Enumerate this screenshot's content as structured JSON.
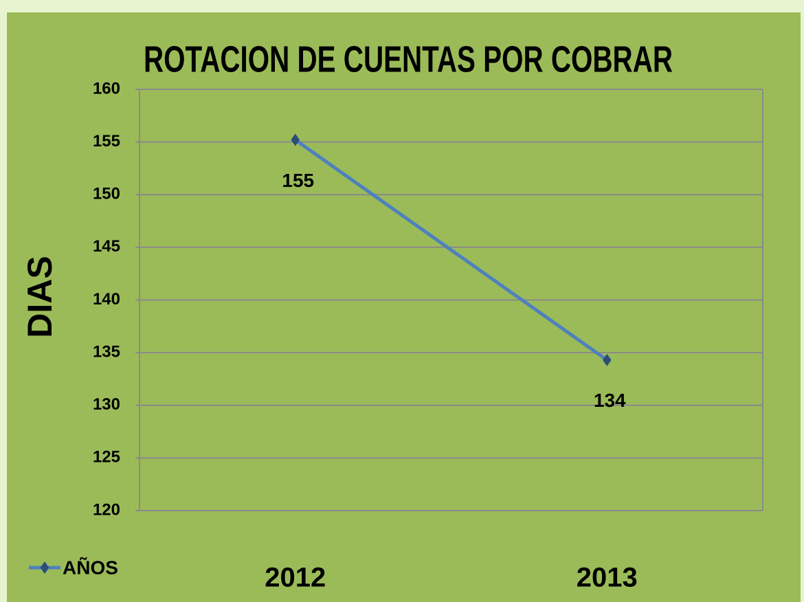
{
  "chart_data": {
    "type": "line",
    "title": "ROTACION DE CUENTAS POR COBRAR",
    "y_label": "DIAS",
    "categories": [
      "2012",
      "2013"
    ],
    "series": [
      {
        "name": "AÑOS",
        "color": "#4f81bd",
        "marker_color": "#2c4d75",
        "values": [
          155.2,
          134.3
        ],
        "value_labels": [
          "155",
          "134"
        ]
      }
    ],
    "ylim": [
      120,
      160
    ],
    "yticks": [
      120,
      125,
      130,
      135,
      140,
      145,
      150,
      155,
      160
    ],
    "grid": true,
    "legend": "bottom-left"
  }
}
